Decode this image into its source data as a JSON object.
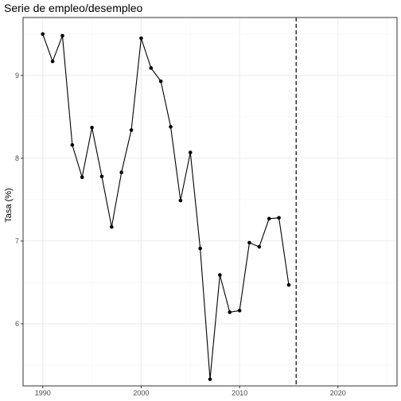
{
  "chart_data": {
    "type": "line",
    "title": "Serie de empleo/desempleo",
    "xlabel": "",
    "ylabel": "Tasa (%)",
    "xlim": [
      1988,
      2026
    ],
    "ylim": [
      5.25,
      9.7
    ],
    "x_ticks": [
      1990,
      2000,
      2010,
      2020
    ],
    "x_tick_labels": [
      "1990",
      "2000",
      "2010",
      "2020"
    ],
    "y_ticks": [
      6,
      7,
      8,
      9
    ],
    "y_tick_labels": [
      "6",
      "7",
      "8",
      "9"
    ],
    "grid": true,
    "vline": {
      "x": 2015.75,
      "style": "dashed"
    },
    "series": [
      {
        "x": [
          1990,
          1991,
          1992,
          1993,
          1994,
          1995,
          1996,
          1997,
          1998,
          1999,
          2000,
          2001,
          2002,
          2003,
          2004,
          2005,
          2006,
          2007,
          2008,
          2009,
          2010,
          2011,
          2012,
          2013,
          2014,
          2015
        ],
        "values": [
          9.5,
          9.17,
          9.48,
          8.16,
          7.77,
          8.37,
          7.78,
          7.17,
          7.83,
          8.34,
          9.45,
          9.09,
          8.93,
          8.38,
          7.49,
          8.07,
          6.91,
          5.33,
          6.59,
          6.14,
          6.16,
          6.98,
          6.93,
          7.27,
          7.28,
          6.47
        ]
      }
    ],
    "colors": {
      "line": "#000000",
      "point": "#000000",
      "grid_major": "#ebebeb",
      "grid_minor": "#f5f5f5",
      "panel_border": "#333333",
      "tick_label": "#4d4d4d"
    }
  }
}
